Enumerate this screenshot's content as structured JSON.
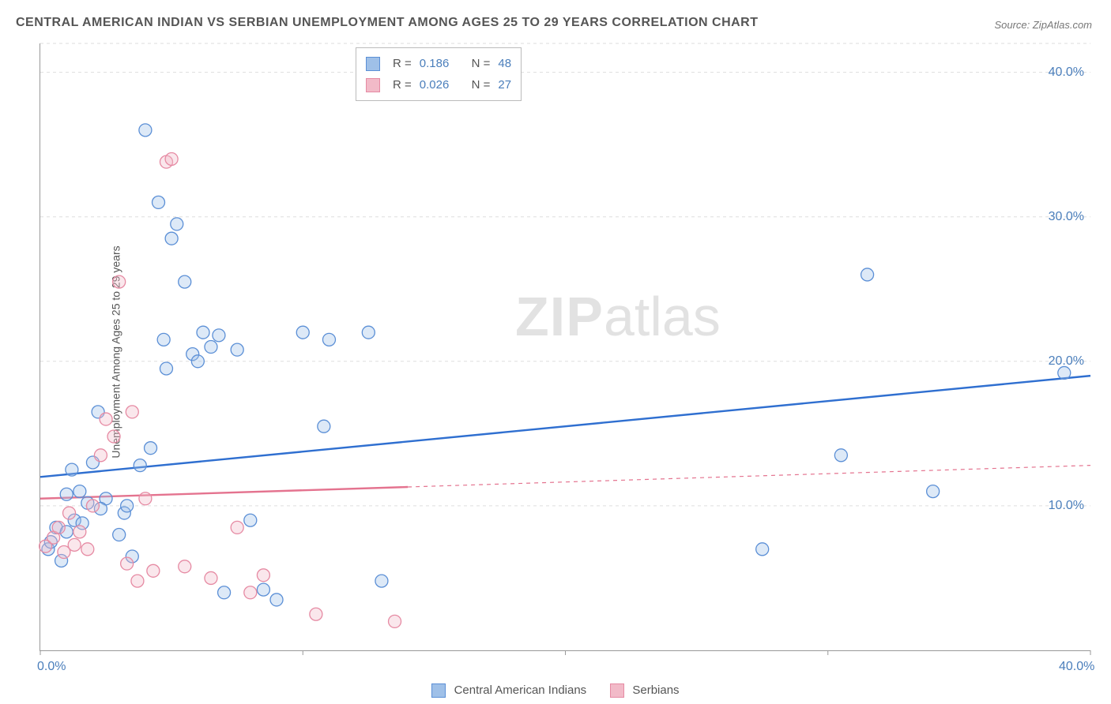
{
  "title": "CENTRAL AMERICAN INDIAN VS SERBIAN UNEMPLOYMENT AMONG AGES 25 TO 29 YEARS CORRELATION CHART",
  "source": "Source: ZipAtlas.com",
  "ylabel": "Unemployment Among Ages 25 to 29 years",
  "watermark_a": "ZIP",
  "watermark_b": "atlas",
  "chart": {
    "type": "scatter",
    "background_color": "#ffffff",
    "grid_color": "#dddddd",
    "axis_color": "#999999",
    "xlim": [
      0,
      40
    ],
    "ylim": [
      0,
      42
    ],
    "x_tick_positions": [
      0,
      10,
      20,
      30,
      40
    ],
    "x_tick_labels_visible": {
      "0": "0.0%",
      "40": "40.0%"
    },
    "y_tick_positions": [
      10,
      20,
      30,
      40
    ],
    "y_tick_labels": [
      "10.0%",
      "20.0%",
      "30.0%",
      "40.0%"
    ],
    "marker_radius": 8,
    "marker_fill_opacity": 0.35,
    "marker_stroke_width": 1.3,
    "trend_line_width": 2.4,
    "series": [
      {
        "id": "cai",
        "label": "Central American Indians",
        "color_stroke": "#5b8fd6",
        "color_fill": "#9fc0e8",
        "trend_color": "#2f6fd0",
        "R": "0.186",
        "N": "48",
        "trend": {
          "x1": 0,
          "y1": 12.0,
          "x2": 40,
          "y2": 19.0,
          "solid_to_x": 40
        },
        "points": [
          [
            0.3,
            7.0
          ],
          [
            0.4,
            7.5
          ],
          [
            0.6,
            8.5
          ],
          [
            0.8,
            6.2
          ],
          [
            1.0,
            10.8
          ],
          [
            1.2,
            12.5
          ],
          [
            1.3,
            9.0
          ],
          [
            1.5,
            11.0
          ],
          [
            1.6,
            8.8
          ],
          [
            1.8,
            10.2
          ],
          [
            2.0,
            13.0
          ],
          [
            2.2,
            16.5
          ],
          [
            2.5,
            10.5
          ],
          [
            3.0,
            8.0
          ],
          [
            3.2,
            9.5
          ],
          [
            3.5,
            6.5
          ],
          [
            3.8,
            12.8
          ],
          [
            4.0,
            36.0
          ],
          [
            4.2,
            14.0
          ],
          [
            4.5,
            31.0
          ],
          [
            4.7,
            21.5
          ],
          [
            5.0,
            28.5
          ],
          [
            5.2,
            29.5
          ],
          [
            5.5,
            25.5
          ],
          [
            5.8,
            20.5
          ],
          [
            6.0,
            20.0
          ],
          [
            6.2,
            22.0
          ],
          [
            6.5,
            21.0
          ],
          [
            7.0,
            4.0
          ],
          [
            7.5,
            20.8
          ],
          [
            8.0,
            9.0
          ],
          [
            8.5,
            4.2
          ],
          [
            9.0,
            3.5
          ],
          [
            10.0,
            22.0
          ],
          [
            10.8,
            15.5
          ],
          [
            11.0,
            21.5
          ],
          [
            12.5,
            22.0
          ],
          [
            13.0,
            4.8
          ],
          [
            27.5,
            7.0
          ],
          [
            30.5,
            13.5
          ],
          [
            31.5,
            26.0
          ],
          [
            34.0,
            11.0
          ],
          [
            39.0,
            19.2
          ],
          [
            1.0,
            8.2
          ],
          [
            2.3,
            9.8
          ],
          [
            3.3,
            10.0
          ],
          [
            4.8,
            19.5
          ],
          [
            6.8,
            21.8
          ]
        ]
      },
      {
        "id": "ser",
        "label": "Serbians",
        "color_stroke": "#e68aa3",
        "color_fill": "#f2bac8",
        "trend_color": "#e4738f",
        "R": "0.026",
        "N": "27",
        "trend": {
          "x1": 0,
          "y1": 10.5,
          "x2": 40,
          "y2": 12.8,
          "solid_to_x": 14
        },
        "points": [
          [
            0.2,
            7.2
          ],
          [
            0.5,
            7.8
          ],
          [
            0.7,
            8.5
          ],
          [
            0.9,
            6.8
          ],
          [
            1.1,
            9.5
          ],
          [
            1.3,
            7.3
          ],
          [
            1.5,
            8.2
          ],
          [
            1.8,
            7.0
          ],
          [
            2.0,
            10.0
          ],
          [
            2.3,
            13.5
          ],
          [
            2.5,
            16.0
          ],
          [
            2.8,
            14.8
          ],
          [
            3.0,
            25.5
          ],
          [
            3.3,
            6.0
          ],
          [
            3.5,
            16.5
          ],
          [
            4.0,
            10.5
          ],
          [
            4.3,
            5.5
          ],
          [
            4.8,
            33.8
          ],
          [
            5.0,
            34.0
          ],
          [
            5.5,
            5.8
          ],
          [
            6.5,
            5.0
          ],
          [
            7.5,
            8.5
          ],
          [
            8.0,
            4.0
          ],
          [
            8.5,
            5.2
          ],
          [
            10.5,
            2.5
          ],
          [
            13.5,
            2.0
          ],
          [
            3.7,
            4.8
          ]
        ]
      }
    ]
  },
  "corr_legend": {
    "r_label": "R  =",
    "n_label": "N  ="
  },
  "colors": {
    "tick_label": "#4a7ebb",
    "text": "#555555"
  }
}
